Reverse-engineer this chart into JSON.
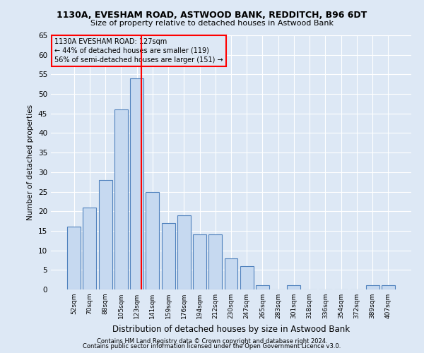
{
  "title1": "1130A, EVESHAM ROAD, ASTWOOD BANK, REDDITCH, B96 6DT",
  "title2": "Size of property relative to detached houses in Astwood Bank",
  "xlabel": "Distribution of detached houses by size in Astwood Bank",
  "ylabel": "Number of detached properties",
  "footer1": "Contains HM Land Registry data © Crown copyright and database right 2024.",
  "footer2": "Contains public sector information licensed under the Open Government Licence v3.0.",
  "categories": [
    "52sqm",
    "70sqm",
    "88sqm",
    "105sqm",
    "123sqm",
    "141sqm",
    "159sqm",
    "176sqm",
    "194sqm",
    "212sqm",
    "230sqm",
    "247sqm",
    "265sqm",
    "283sqm",
    "301sqm",
    "318sqm",
    "336sqm",
    "354sqm",
    "372sqm",
    "389sqm",
    "407sqm"
  ],
  "values": [
    16,
    21,
    28,
    46,
    54,
    25,
    17,
    19,
    14,
    14,
    8,
    6,
    1,
    0,
    1,
    0,
    0,
    0,
    0,
    1,
    1
  ],
  "bar_color": "#c6d9f0",
  "bar_edge_color": "#4f81bd",
  "ylim": [
    0,
    65
  ],
  "yticks": [
    0,
    5,
    10,
    15,
    20,
    25,
    30,
    35,
    40,
    45,
    50,
    55,
    60,
    65
  ],
  "red_line_x": 4.3,
  "annotation_title": "1130A EVESHAM ROAD: 127sqm",
  "annotation_line1": "← 44% of detached houses are smaller (119)",
  "annotation_line2": "56% of semi-detached houses are larger (151) →",
  "bg_color": "#dde8f5",
  "grid_color": "white"
}
